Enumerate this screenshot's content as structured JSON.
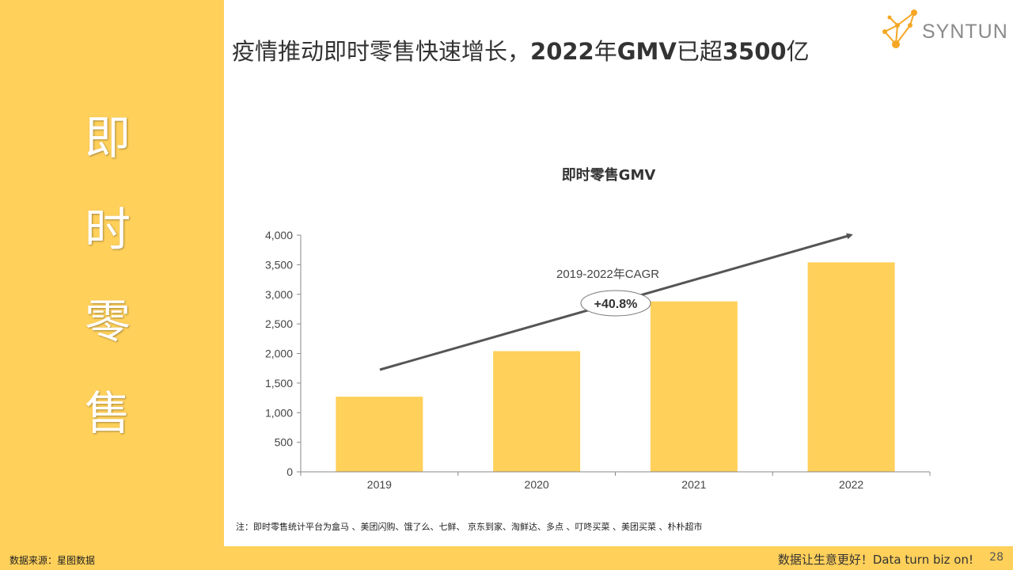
{
  "side_title": [
    "即",
    "时",
    "零",
    "售"
  ],
  "headline": {
    "part1": "疫情推动即时零售快速增长，",
    "part2": "2022",
    "part3": "年",
    "part4": "GMV",
    "part5": "已超",
    "part6": "3500",
    "part7": "亿"
  },
  "logo": {
    "text": "SYNTUN",
    "icon": "molecule-icon",
    "color": "#F5A623"
  },
  "chart_data": {
    "type": "bar",
    "title": "即时零售GMV",
    "categories": [
      "2019",
      "2020",
      "2021",
      "2022"
    ],
    "values": [
      1270,
      2040,
      2880,
      3540
    ],
    "ylim": [
      0,
      4000
    ],
    "yticks": [
      0,
      500,
      1000,
      1500,
      2000,
      2500,
      3000,
      3500,
      4000
    ],
    "ytick_labels": [
      "0",
      "500",
      "1,000",
      "1,500",
      "2,000",
      "2,500",
      "3,000",
      "3,500",
      "4,000"
    ],
    "xlabel": "",
    "ylabel": "",
    "bar_color": "#FFD05A",
    "annotation_label": "2019-2022年CAGR",
    "annotation_value": "+40.8%",
    "grid": false
  },
  "note": "注：即时零售统计平台为盒马 、美团闪购、饿了么、七鲜、 京东到家、淘鲜达、多点 、叮咚买菜 、美团买菜 、朴朴超市",
  "source": "数据来源：星图数据",
  "slogan": "数据让生意更好！Data  turn  biz  on!",
  "page_number": "28"
}
